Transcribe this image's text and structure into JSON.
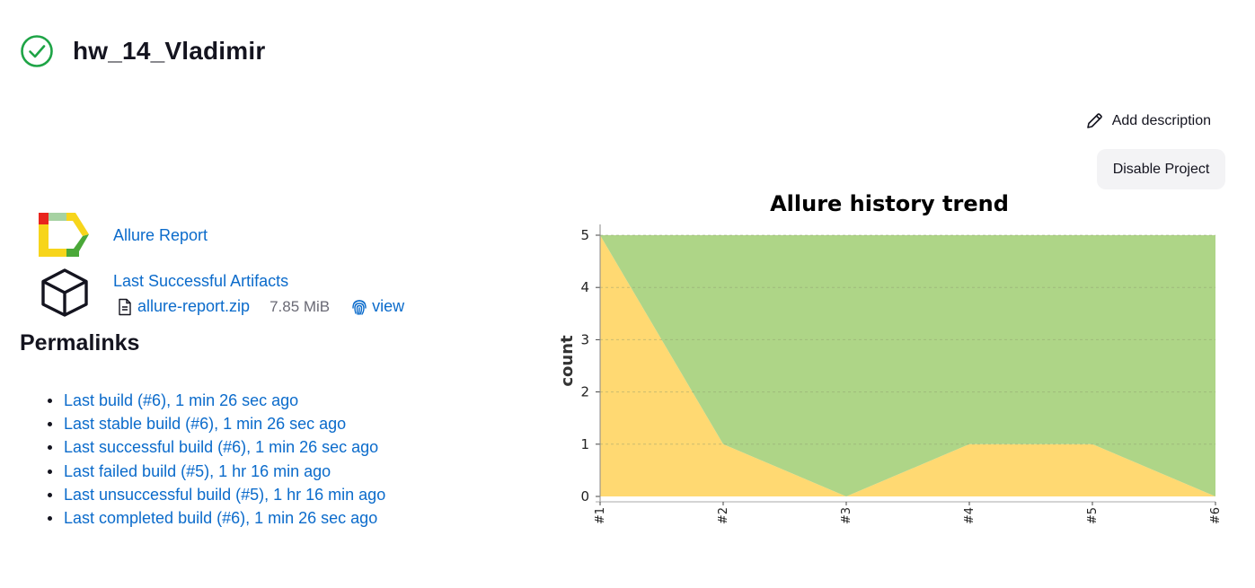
{
  "header": {
    "title": "hw_14_Vladimir",
    "status_icon": "check-circle-icon",
    "status_color": "#1ea446"
  },
  "actions": {
    "add_description_label": "Add description",
    "disable_project_label": "Disable Project"
  },
  "artifacts": {
    "allure_report_label": "Allure Report",
    "last_successful_artifacts_label": "Last Successful Artifacts",
    "file_name": "allure-report.zip",
    "file_size": "7.85 MiB",
    "view_label": "view"
  },
  "permalinks": {
    "title": "Permalinks",
    "items": [
      "Last build (#6), 1 min 26 sec ago",
      "Last stable build (#6), 1 min 26 sec ago",
      "Last successful build (#6), 1 min 26 sec ago",
      "Last failed build (#5), 1 hr 16 min ago",
      "Last unsuccessful build (#5), 1 hr 16 min ago",
      "Last completed build (#6), 1 min 26 sec ago"
    ]
  },
  "colors": {
    "link": "#0b6bcb",
    "passed": "#aed587",
    "failed": "#ffd972"
  },
  "chart_data": {
    "type": "area",
    "title": "Allure history trend",
    "xlabel": "",
    "ylabel": "count",
    "categories": [
      "#1",
      "#2",
      "#3",
      "#4",
      "#5",
      "#6"
    ],
    "series": [
      {
        "values": [
          5,
          1,
          0,
          1,
          1,
          0
        ],
        "color": "#ffd972"
      },
      {
        "values": [
          0,
          4,
          5,
          4,
          4,
          5
        ],
        "color": "#aed587"
      }
    ],
    "stacked": true,
    "ylim": [
      0,
      5
    ],
    "yticks": [
      0,
      1,
      2,
      3,
      4,
      5
    ],
    "grid": true
  }
}
